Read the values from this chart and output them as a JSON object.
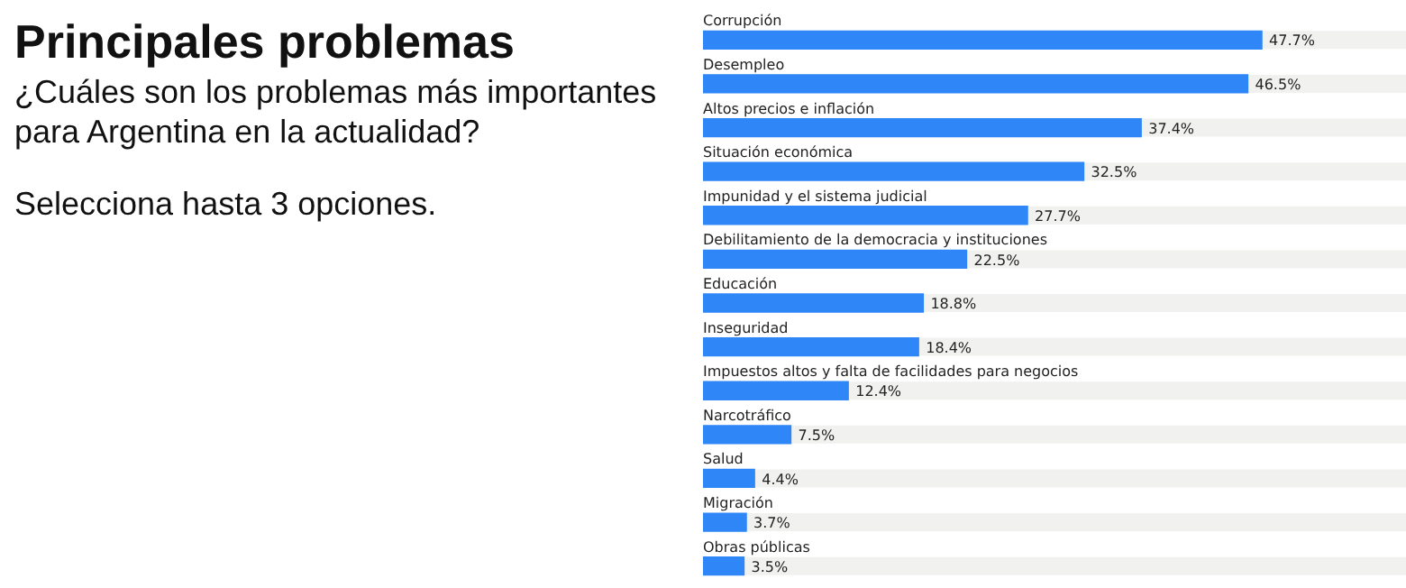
{
  "chart_data": {
    "type": "bar",
    "orientation": "horizontal",
    "title": "Principales problemas",
    "subtitle": "¿Cuáles son los problemas más importantes para Argentina en la actualidad?",
    "annotations": [
      "Selecciona hasta 3 opciones."
    ],
    "categories": [
      "Corrupción",
      "Desempleo",
      "Altos precios e inflación",
      "Situación económica",
      "Impunidad y el sistema judicial",
      "Debilitamiento de la democracia y instituciones",
      "Educación",
      "Inseguridad",
      "Impuestos altos y falta de facilidades para negocios",
      "Narcotráfico",
      "Salud",
      "Migración",
      "Obras públicas"
    ],
    "values": [
      47.7,
      46.5,
      37.4,
      32.5,
      27.7,
      22.5,
      18.8,
      18.4,
      12.4,
      7.5,
      4.4,
      3.7,
      3.5
    ],
    "value_labels": [
      "47.7%",
      "46.5%",
      "37.4%",
      "32.5%",
      "27.7%",
      "22.5%",
      "18.8%",
      "18.4%",
      "12.4%",
      "7.5%",
      "4.4%",
      "3.7%",
      "3.5%"
    ],
    "color": "#2f86f6",
    "xlim": [
      0,
      60
    ]
  }
}
